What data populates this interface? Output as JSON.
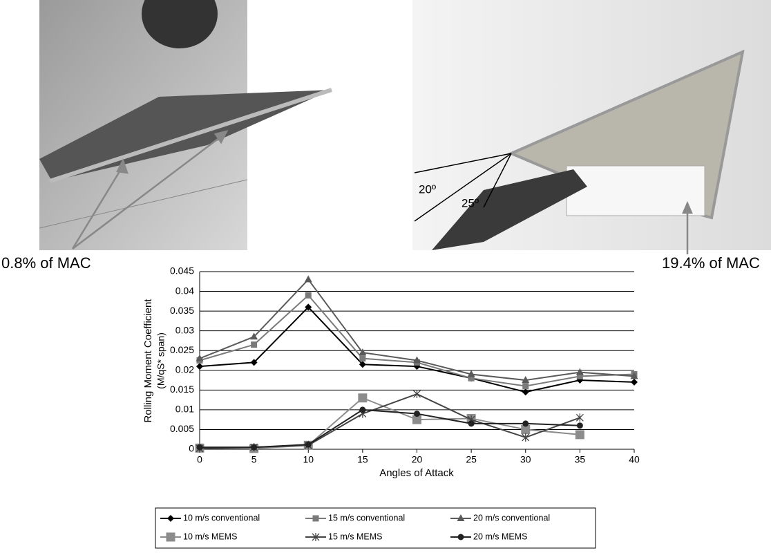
{
  "chart_data": {
    "type": "line",
    "xlabel": "Angles of Attack",
    "ylabel": [
      "Rolling Moment Coefficient",
      "(M/qS* span)"
    ],
    "annotations": [
      "0.8% of MAC",
      "19.4% of MAC",
      "20º",
      "25º"
    ],
    "x": [
      0,
      5,
      10,
      15,
      20,
      25,
      30,
      35,
      40
    ],
    "xlim": [
      0,
      40
    ],
    "xticks": [
      0,
      5,
      10,
      15,
      20,
      25,
      30,
      35,
      40
    ],
    "ylim": [
      0,
      0.045
    ],
    "yticks": [
      0,
      0.005,
      0.01,
      0.015,
      0.02,
      0.025,
      0.03,
      0.035,
      0.04,
      0.045
    ],
    "grid": true,
    "legend": "bottom",
    "series": [
      {
        "name": "10 m/s conventional",
        "color": "#000000",
        "marker": "diamond",
        "values": [
          0.021,
          0.022,
          0.036,
          0.0215,
          0.021,
          0.018,
          0.0145,
          0.0175,
          0.017
        ]
      },
      {
        "name": "15 m/s conventional",
        "color": "#7a7a7a",
        "marker": "square",
        "values": [
          0.0225,
          0.0265,
          0.039,
          0.023,
          0.022,
          0.018,
          0.016,
          0.0185,
          0.019
        ]
      },
      {
        "name": "20 m/s conventional",
        "color": "#5a5a5a",
        "marker": "triangle",
        "values": [
          0.023,
          0.0285,
          0.043,
          0.0245,
          0.0225,
          0.019,
          0.0175,
          0.0195,
          0.0185
        ]
      },
      {
        "name": "10 m/s MEMS",
        "color": "#8c8c8c",
        "marker": "bigsquare",
        "values": [
          0.0003,
          0.0002,
          0.001,
          0.013,
          0.0075,
          0.0078,
          0.005,
          0.0037,
          null
        ]
      },
      {
        "name": "15 m/s MEMS",
        "color": "#444444",
        "marker": "star",
        "values": [
          0.0002,
          0.0005,
          0.001,
          0.009,
          0.014,
          0.0075,
          0.003,
          0.008,
          null
        ]
      },
      {
        "name": "20 m/s MEMS",
        "color": "#222222",
        "marker": "circle",
        "values": [
          0.0005,
          0.0005,
          0.0012,
          0.01,
          0.009,
          0.0065,
          0.0065,
          0.006,
          null
        ]
      }
    ]
  }
}
